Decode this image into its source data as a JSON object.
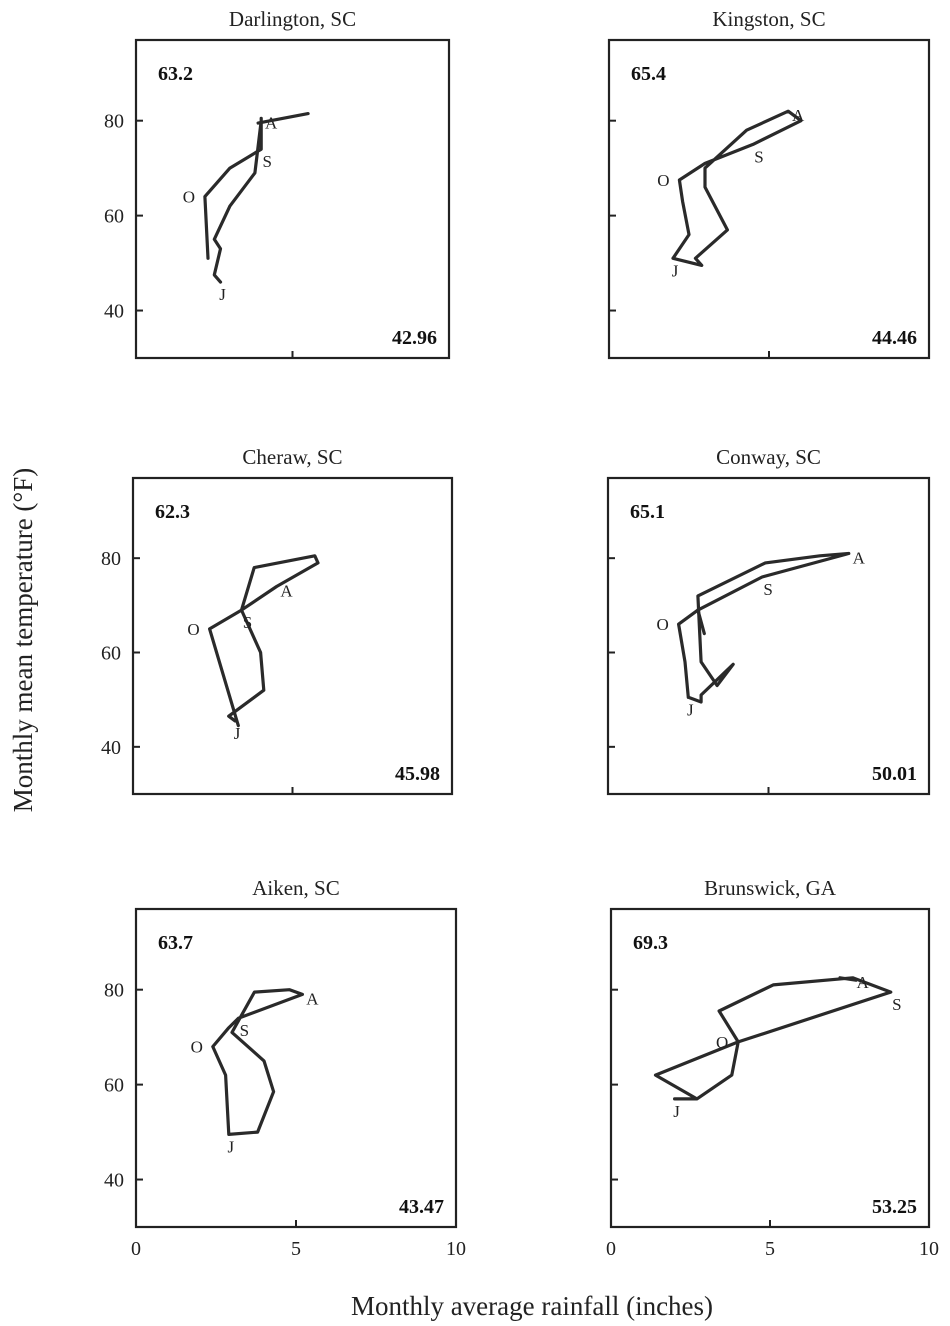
{
  "figure": {
    "xlabel": "Monthly average rainfall (inches)",
    "ylabel": "Monthly mean temperature (°F)"
  },
  "chart_data": [
    {
      "type": "line",
      "title": "Darlington, SC",
      "mean_temperature_label": "63.2",
      "annual_rainfall_label": "42.96",
      "xlim": [
        0,
        10
      ],
      "ylim": [
        30,
        97
      ],
      "xticks": [
        "0",
        "5",
        "10"
      ],
      "yticks": [
        "40",
        "60",
        "80"
      ],
      "series": [
        {
          "x": [
            2.7,
            2.5,
            2.7,
            2.5,
            3.0,
            3.8,
            4.0,
            4.0,
            4.0,
            3.0,
            2.2,
            2.3
          ],
          "y": [
            46.0,
            47.5,
            53.0,
            55.0,
            62.0,
            69.0,
            80.0,
            80.5,
            74.0,
            70.0,
            64.0,
            51.0
          ],
          "month_labels": {
            "J": 0,
            "A": 7,
            "S": 8,
            "O": 10
          }
        }
      ],
      "extra_path": {
        "x": [
          3.9,
          5.5
        ],
        "y": [
          79.5,
          81.5
        ]
      }
    },
    {
      "type": "line",
      "title": "Kingston, SC",
      "mean_temperature_label": "65.4",
      "annual_rainfall_label": "44.46",
      "xlim": [
        0,
        10
      ],
      "ylim": [
        30,
        97
      ],
      "xticks": [
        "0",
        "5",
        "10"
      ],
      "yticks": [
        "40",
        "60",
        "80"
      ],
      "series": [
        {
          "x": [
            2.0,
            2.9,
            2.7,
            3.7,
            3.0,
            3.0,
            4.3,
            5.6,
            6.0,
            4.5,
            3.0,
            2.2,
            2.3,
            2.5,
            2.0
          ],
          "y": [
            51.0,
            49.5,
            51.0,
            57.0,
            66.0,
            70.0,
            78.0,
            82.0,
            80.0,
            75.0,
            71.0,
            67.5,
            63.0,
            56.0,
            51.0
          ],
          "month_labels": {
            "J": 0,
            "A": 7,
            "S": 9,
            "O": 11
          }
        }
      ]
    },
    {
      "type": "line",
      "title": "Cheraw, SC",
      "mean_temperature_label": "62.3",
      "annual_rainfall_label": "45.98",
      "xlim": [
        0,
        10
      ],
      "ylim": [
        30,
        97
      ],
      "xticks": [
        "0",
        "5",
        "10"
      ],
      "yticks": [
        "40",
        "60",
        "80"
      ],
      "series": [
        {
          "x": [
            3.2,
            3.0,
            4.1,
            4.0,
            3.4,
            3.8,
            5.7,
            5.8,
            4.5,
            3.4,
            2.4,
            3.3
          ],
          "y": [
            45.5,
            46.5,
            52.0,
            60.0,
            69.0,
            78.0,
            80.5,
            79.0,
            74.0,
            69.0,
            65.0,
            44.5
          ],
          "month_labels": {
            "J": 0,
            "A": 8,
            "S": 9,
            "O": 10
          }
        }
      ]
    },
    {
      "type": "line",
      "title": "Conway, SC",
      "mean_temperature_label": "65.1",
      "annual_rainfall_label": "50.01",
      "xlim": [
        0,
        10
      ],
      "ylim": [
        30,
        97
      ],
      "xticks": [
        "0",
        "5",
        "10"
      ],
      "yticks": [
        "40",
        "60",
        "80"
      ],
      "series": [
        {
          "x": [
            2.5,
            2.9,
            2.9,
            3.9,
            3.4,
            2.9,
            2.8,
            4.9,
            6.6,
            7.5,
            4.8,
            2.8,
            2.2,
            2.4,
            2.5
          ],
          "y": [
            50.5,
            49.5,
            51.0,
            57.5,
            53.0,
            58.0,
            72.0,
            79.0,
            80.5,
            81.0,
            76.0,
            69.0,
            66.0,
            58.0,
            50.5
          ],
          "month_labels": {
            "J": 0,
            "A": 9,
            "S": 10,
            "O": 12
          }
        }
      ],
      "extra_path": {
        "x": [
          2.8,
          3.0
        ],
        "y": [
          69.0,
          64.0
        ]
      }
    },
    {
      "type": "line",
      "title": "Aiken, SC",
      "mean_temperature_label": "63.7",
      "annual_rainfall_label": "43.47",
      "xlim": [
        0,
        10
      ],
      "ylim": [
        30,
        97
      ],
      "xticks": [
        "0",
        "5",
        "10"
      ],
      "yticks": [
        "40",
        "60",
        "80"
      ],
      "series": [
        {
          "x": [
            2.9,
            3.8,
            4.3,
            4.0,
            3.0,
            3.7,
            4.8,
            5.2,
            3.2,
            2.9,
            2.4,
            2.8,
            2.9
          ],
          "y": [
            49.5,
            50.0,
            58.5,
            65.0,
            71.0,
            79.5,
            80.0,
            79.0,
            74.0,
            72.0,
            68.0,
            62.0,
            49.5
          ],
          "month_labels": {
            "J": 0,
            "A": 7,
            "S": 8,
            "O": 10
          }
        }
      ]
    },
    {
      "type": "line",
      "title": "Brunswick, GA",
      "mean_temperature_label": "69.3",
      "annual_rainfall_label": "53.25",
      "xlim": [
        0,
        10
      ],
      "ylim": [
        30,
        97
      ],
      "xticks": [
        "0",
        "5",
        "10"
      ],
      "yticks": [
        "40",
        "60",
        "80"
      ],
      "series": [
        {
          "x": [
            2.0,
            2.7,
            1.4,
            4.0,
            8.8,
            7.6,
            5.1,
            3.4,
            4.0,
            3.8,
            2.7,
            2.0
          ],
          "y": [
            57.0,
            57.0,
            62.0,
            69.0,
            79.5,
            82.5,
            81.0,
            75.5,
            69.0,
            62.0,
            57.0,
            57.0
          ],
          "month_labels": {
            "J": 0,
            "S": 4,
            "A": 5,
            "O": 8
          }
        }
      ],
      "extra_path": {
        "x": [
          7.2,
          7.7
        ],
        "y": [
          82.5,
          82.0
        ]
      }
    }
  ]
}
